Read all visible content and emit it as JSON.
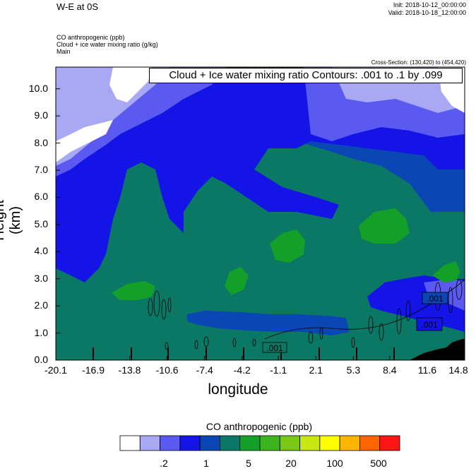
{
  "header": {
    "title": "W-E at 0S",
    "init": "Init: 2018-10-12_00:00:00",
    "valid": "Valid: 2018-10-18_12:00:00",
    "field1": "CO anthropogenic   (ppb)",
    "field2": "Cloud + ice water mixing ratio   (g/kg)",
    "field3": "Main",
    "cross_section": "Cross-Section: (130,420) to (454,420)"
  },
  "contour_info": "Cloud + Ice water mixing ratio Contours: .001 to .1 by .099",
  "contour_labels": [
    ".001",
    ".001",
    ".001"
  ],
  "colorbar": {
    "title": "CO anthropogenic  (ppb)",
    "colors": [
      "#ffffff",
      "#a8a8f5",
      "#5a5af0",
      "#1414e6",
      "#0a46b4",
      "#0a7864",
      "#14a028",
      "#3cb41e",
      "#78c814",
      "#c8e614",
      "#ffff00",
      "#ffb400",
      "#ff6400",
      "#ff1414"
    ],
    "tick_labels": [
      ".2",
      "1",
      "5",
      "20",
      "100",
      "500"
    ]
  },
  "chart_data": {
    "type": "heatmap",
    "title": "",
    "xlabel": "longitude",
    "ylabel": "Height (km)",
    "x_ticks": [
      "-20.1",
      "-16.9",
      "-13.8",
      "-10.6",
      "-7.4",
      "-4.2",
      "-1.1",
      "2.1",
      "5.3",
      "8.4",
      "11.6",
      "14.8"
    ],
    "y_ticks": [
      "0.0",
      "1.0",
      "2.0",
      "3.0",
      "4.0",
      "5.0",
      "6.0",
      "7.0",
      "8.0",
      "9.0",
      "10.0"
    ],
    "xlim": [
      -20.1,
      14.8
    ],
    "ylim": [
      0,
      10.8
    ],
    "colors": {
      "white": "#ffffff",
      "light": "#a8a8f5",
      "mid": "#5a5af0",
      "blue": "#1414e6",
      "dblue": "#0a46b4",
      "teal": "#0a7864",
      "green": "#14a028"
    }
  }
}
